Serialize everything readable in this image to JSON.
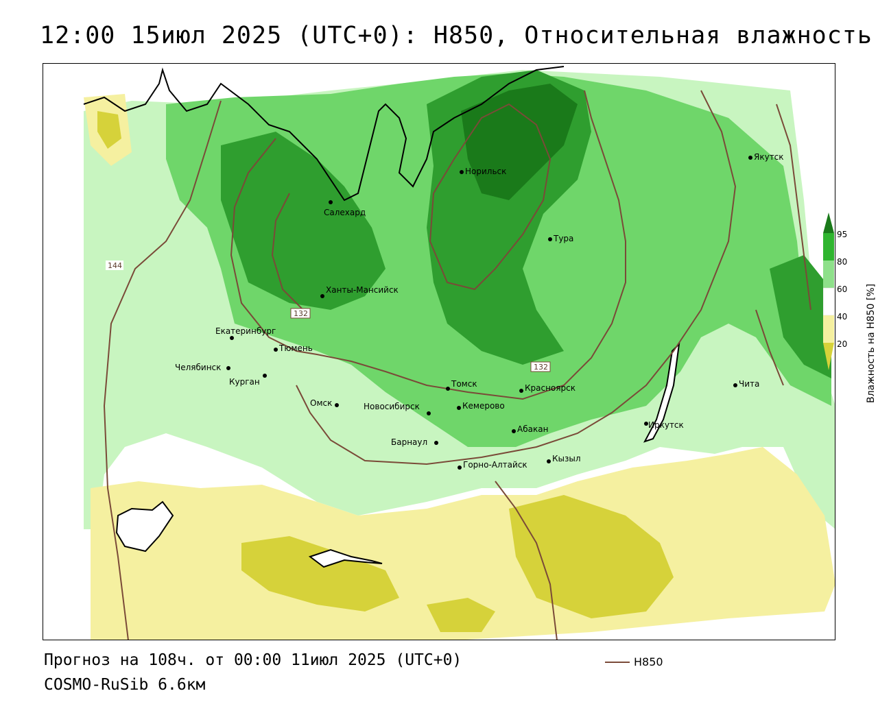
{
  "header": {
    "title": "12:00 15июл 2025 (UTC+0): H850, Относительная влажность"
  },
  "map": {
    "cities": [
      {
        "name": "Норильск"
      },
      {
        "name": "Якутск"
      },
      {
        "name": "Салехард"
      },
      {
        "name": "Тура"
      },
      {
        "name": "Ханты-Мансийск"
      },
      {
        "name": "Екатеринбург"
      },
      {
        "name": "Тюмень"
      },
      {
        "name": "Челябинск"
      },
      {
        "name": "Курган"
      },
      {
        "name": "Омск"
      },
      {
        "name": "Новосибирск"
      },
      {
        "name": "Томск"
      },
      {
        "name": "Кемерово"
      },
      {
        "name": "Красноярск"
      },
      {
        "name": "Абакан"
      },
      {
        "name": "Барнаул"
      },
      {
        "name": "Горно-Алтайск"
      },
      {
        "name": "Кызыл"
      },
      {
        "name": "Иркутск"
      },
      {
        "name": "Чита"
      }
    ],
    "contour_labels": [
      "144",
      "132",
      "132"
    ],
    "colors": {
      "very_dry": "#d6d23a",
      "dry": "#f5f0a0",
      "moist": "#c8f5c0",
      "wet": "#6fd66a",
      "very_wet": "#2f9e2f",
      "saturated": "#1a7a1a",
      "contour": "#7a4a38",
      "coast": "#000000"
    }
  },
  "legend": {
    "title": "Влажность на H850 [%]",
    "ticks": [
      "95",
      "80",
      "60",
      "40",
      "20"
    ],
    "colors": [
      "#1a7a1a",
      "#2fb52f",
      "#8ee08a",
      "#ffffff",
      "#f5f0a0",
      "#d6d23a"
    ]
  },
  "footer": {
    "forecast": "Прогноз на 108ч. от 00:00 11июл 2025 (UTC+0)",
    "model": "COSMO-RuSib 6.6км",
    "series_name": "H850"
  }
}
